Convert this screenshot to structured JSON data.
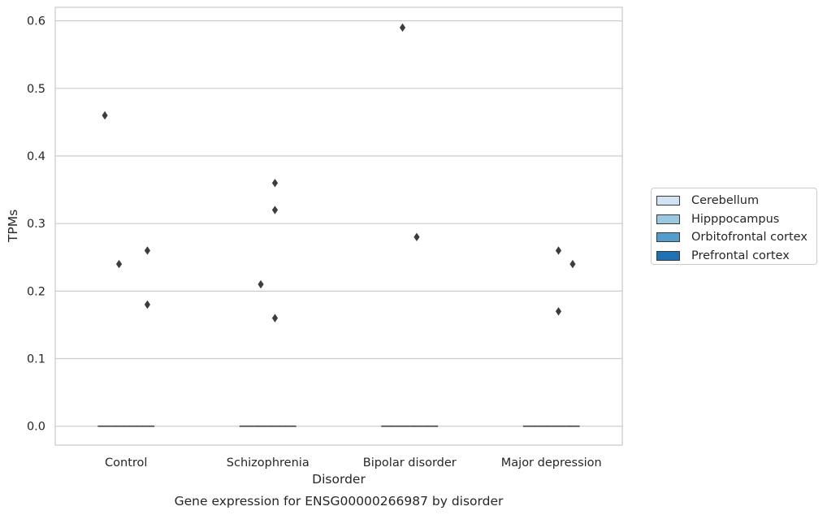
{
  "chart_data": {
    "type": "box",
    "title": "Gene expression for ENSG00000266987 by disorder",
    "xlabel": "Disorder",
    "ylabel": "TPMs",
    "categories": [
      "Control",
      "Schizophrenia",
      "Bipolar disorder",
      "Major depression"
    ],
    "ylim": [
      -0.028,
      0.62
    ],
    "yticks": [
      0.0,
      0.1,
      0.2,
      0.3,
      0.4,
      0.5,
      0.6
    ],
    "ytick_labels": [
      "0.0",
      "0.1",
      "0.2",
      "0.3",
      "0.4",
      "0.5",
      "0.6"
    ],
    "grid": "y",
    "legend_position": "right",
    "series": [
      {
        "name": "Cerebellum",
        "color": "#d2e3f3",
        "median": [
          0,
          0,
          0,
          0
        ],
        "outliers": [
          [
            0.46
          ],
          [],
          [],
          []
        ]
      },
      {
        "name": "Hipppocampus",
        "color": "#9ac8e0",
        "median": [
          0,
          0,
          0,
          0
        ],
        "outliers": [
          [
            0.24
          ],
          [
            0.21
          ],
          [
            0.59
          ],
          []
        ]
      },
      {
        "name": "Orbitofrontal cortex",
        "color": "#529dcc",
        "median": [
          0,
          0,
          0,
          0
        ],
        "outliers": [
          [],
          [
            0.16,
            0.32,
            0.36
          ],
          [
            0.28
          ],
          [
            0.17,
            0.26
          ]
        ]
      },
      {
        "name": "Prefrontal cortex",
        "color": "#2070b4",
        "median": [
          0,
          0,
          0,
          0
        ],
        "outliers": [
          [
            0.18,
            0.26
          ],
          [],
          [],
          [
            0.24
          ]
        ]
      }
    ]
  }
}
